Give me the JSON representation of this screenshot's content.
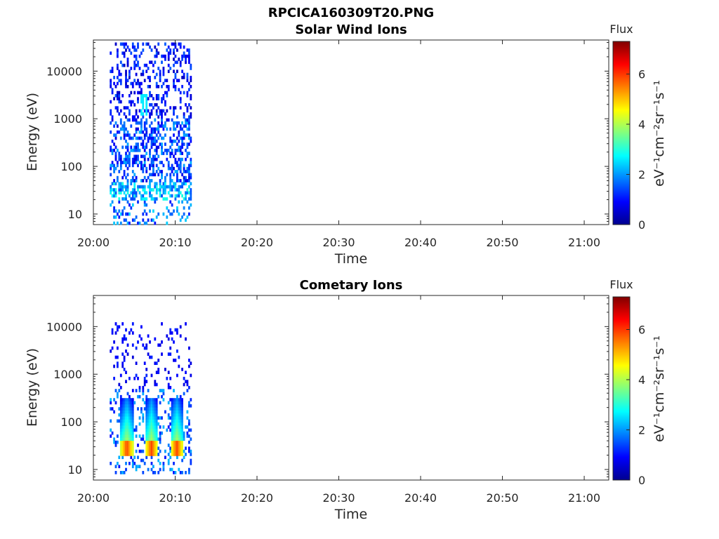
{
  "figure_title": "RPCICA160309T20.PNG",
  "colormap": [
    "#00008f",
    "#0000ff",
    "#0080ff",
    "#00ffff",
    "#80ff80",
    "#ffff00",
    "#ff8000",
    "#ff0000",
    "#800000"
  ],
  "chart_data": [
    {
      "type": "heatmap",
      "title": "Solar Wind Ions",
      "xlabel": "Time",
      "ylabel": "Energy (eV)",
      "x_ticks": [
        "20:00",
        "20:10",
        "20:20",
        "20:30",
        "20:40",
        "20:50",
        "21:00"
      ],
      "xlim": [
        "20:00",
        "21:03"
      ],
      "y_scale": "log",
      "y_ticks": [
        "10",
        "100",
        "1000",
        "10000"
      ],
      "ylim": [
        6,
        45000
      ],
      "colorbar": {
        "label": "Flux",
        "units": "eV⁻¹cm⁻²sr⁻¹s⁻¹",
        "ticks": [
          "0",
          "2",
          "4",
          "6"
        ],
        "range": [
          0,
          7.3
        ]
      },
      "observed_time_range": [
        "20:02",
        "20:12"
      ],
      "features": [
        {
          "time": "20:02-20:12",
          "energy_eV": "5-40000",
          "flux_level": "0.5-2",
          "note": "scattered low-flux counts"
        },
        {
          "time": "20:02-20:12",
          "energy_eV": "20-40",
          "flux_level": "2-3",
          "note": "band"
        },
        {
          "time": "20:06",
          "energy_eV": "1000-3000",
          "flux_level": "2.5",
          "note": "patch"
        }
      ]
    },
    {
      "type": "heatmap",
      "title": "Cometary Ions",
      "xlabel": "Time",
      "ylabel": "Energy (eV)",
      "x_ticks": [
        "20:00",
        "20:10",
        "20:20",
        "20:30",
        "20:40",
        "20:50",
        "21:00"
      ],
      "xlim": [
        "20:00",
        "21:03"
      ],
      "y_scale": "log",
      "y_ticks": [
        "10",
        "100",
        "1000",
        "10000"
      ],
      "ylim": [
        6,
        45000
      ],
      "colorbar": {
        "label": "Flux",
        "units": "eV⁻¹cm⁻²sr⁻¹s⁻¹",
        "ticks": [
          "0",
          "2",
          "4",
          "6"
        ],
        "range": [
          0,
          7.3
        ]
      },
      "observed_time_range": [
        "20:02",
        "20:12"
      ],
      "features": [
        {
          "time": "20:04",
          "energy_eV": "20-40",
          "flux_level": "6",
          "note": "peak"
        },
        {
          "time": "20:07",
          "energy_eV": "20-40",
          "flux_level": "6",
          "note": "peak"
        },
        {
          "time": "20:10",
          "energy_eV": "20-40",
          "flux_level": "6",
          "note": "peak"
        },
        {
          "time": "20:03-20:11",
          "energy_eV": "50-300",
          "flux_level": "3-4",
          "note": "tails above peaks"
        },
        {
          "time": "20:02-20:12",
          "energy_eV": "500-10000",
          "flux_level": "0.5-1",
          "note": "sparse counts"
        }
      ]
    }
  ]
}
